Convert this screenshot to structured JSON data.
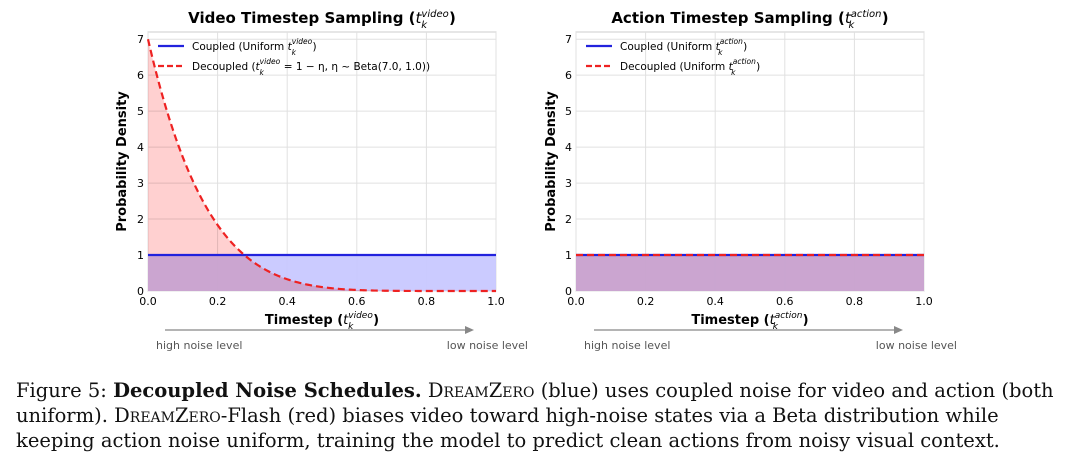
{
  "chart_data": [
    {
      "type": "area",
      "title_main": "Video Timestep Sampling (",
      "title_t": "t",
      "title_sup": "video",
      "title_sub": "k",
      "title_close": ")",
      "xlabel_main": "Timestep (",
      "xlabel_t": "t",
      "xlabel_sup": "video",
      "xlabel_sub": "k",
      "xlabel_close": ")",
      "ylabel": "Probability Density",
      "xlim": [
        0.0,
        1.0
      ],
      "ylim": [
        0,
        7.2
      ],
      "xticks": [
        "0.0",
        "0.2",
        "0.4",
        "0.6",
        "0.8",
        "1.0"
      ],
      "yticks": [
        "0",
        "1",
        "2",
        "3",
        "4",
        "5",
        "6",
        "7"
      ],
      "series": [
        {
          "name": "Coupled",
          "legend_main": "Coupled (Uniform ",
          "legend_t": "t",
          "legend_sup": "video",
          "legend_sub": "k",
          "legend_close": ")",
          "color": "#2222dd",
          "fill": "#c8c8ff",
          "style": "solid",
          "distribution": "uniform",
          "density": 1.0
        },
        {
          "name": "Decoupled",
          "legend_main": "Decoupled (",
          "legend_t": "t",
          "legend_sup": "video",
          "legend_sub": "k",
          "legend_rest": " = 1 − η,  η ~ Beta(7.0, 1.0))",
          "color": "#ee2222",
          "fill": "#ffc0c0",
          "style": "dashed",
          "distribution": "density 7(1−t)^6",
          "beta_a": 7.0,
          "beta_b": 1.0
        }
      ],
      "arrow_left_label": "high noise level",
      "arrow_right_label": "low noise level"
    },
    {
      "type": "area",
      "title_main": "Action Timestep Sampling (",
      "title_t": "t",
      "title_sup": "action",
      "title_sub": "k",
      "title_close": ")",
      "xlabel_main": "Timestep (",
      "xlabel_t": "t",
      "xlabel_sup": "action",
      "xlabel_sub": "k",
      "xlabel_close": ")",
      "ylabel": "Probability Density",
      "xlim": [
        0.0,
        1.0
      ],
      "ylim": [
        0,
        7.2
      ],
      "xticks": [
        "0.0",
        "0.2",
        "0.4",
        "0.6",
        "0.8",
        "1.0"
      ],
      "yticks": [
        "0",
        "1",
        "2",
        "3",
        "4",
        "5",
        "6",
        "7"
      ],
      "series": [
        {
          "name": "Coupled",
          "legend_main": "Coupled (Uniform ",
          "legend_t": "t",
          "legend_sup": "action",
          "legend_sub": "k",
          "legend_close": ")",
          "color": "#2222dd",
          "fill": "#c8c8ff",
          "style": "solid",
          "distribution": "uniform",
          "density": 1.0
        },
        {
          "name": "Decoupled",
          "legend_main": "Decoupled (Uniform ",
          "legend_t": "t",
          "legend_sup": "action",
          "legend_sub": "k",
          "legend_close": ")",
          "color": "#ee2222",
          "fill": "#ffc0c0",
          "style": "dashed",
          "distribution": "uniform",
          "density": 1.0
        }
      ],
      "arrow_left_label": "high noise level",
      "arrow_right_label": "low noise level"
    }
  ],
  "caption": {
    "label": "Figure 5:",
    "bold_title": "Decoupled Noise Schedules.",
    "name1": "DreamZero",
    "text1": " (blue) uses coupled noise for video and action (both uniform). ",
    "name2": "DreamZero",
    "name2_suffix": "-Flash",
    "text2": " (red) biases video toward high-noise states via a Beta distribution while keeping action noise uniform, training the model to predict clean actions from noisy visual context."
  }
}
